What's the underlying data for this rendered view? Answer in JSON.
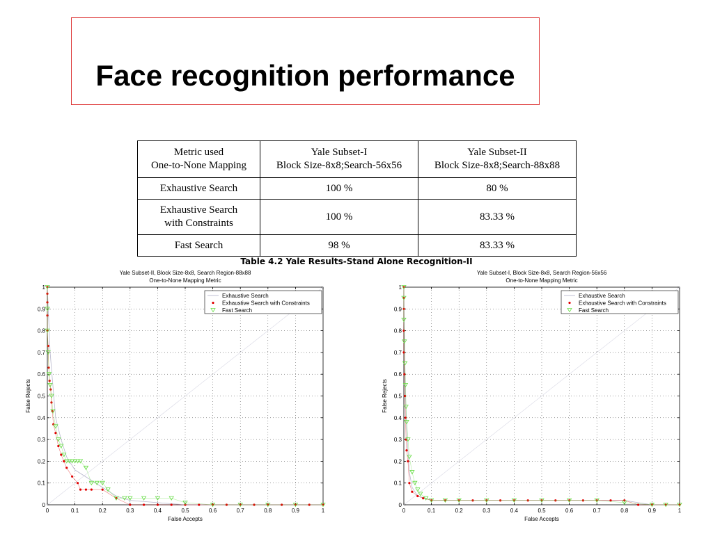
{
  "slide": {
    "title": "Face recognition performance"
  },
  "table": {
    "rows": [
      [
        "Metric used\nOne-to-None Mapping",
        "Yale Subset-I\nBlock Size-8x8;Search-56x56",
        "Yale Subset-II\nBlock Size-8x8;Search-88x88"
      ],
      [
        "Exhaustive Search",
        "100 %",
        "80 %"
      ],
      [
        "Exhaustive Search\nwith Constraints",
        "100 %",
        "83.33 %"
      ],
      [
        "Fast Search",
        "98 %",
        "83.33 %"
      ]
    ],
    "caption": "Table 4.2 Yale Results-Stand Alone Recognition-II"
  },
  "chart_data": [
    {
      "type": "line",
      "title": "Yale Subset-II, Block Size-8x8, Search Region-88x88",
      "subtitle": "One-to-None Mapping Metric",
      "xlabel": "False Accepts",
      "ylabel": "False Rejects",
      "xlim": [
        0,
        1
      ],
      "ylim": [
        0,
        1
      ],
      "xticks": [
        "0",
        "0.1",
        "0.2",
        "0.3",
        "0.4",
        "0.5",
        "0.6",
        "0.7",
        "0.8",
        "0.9",
        "1"
      ],
      "yticks": [
        "0",
        "0.1",
        "0.2",
        "0.3",
        "0.4",
        "0.5",
        "0.6",
        "0.7",
        "0.8",
        "0.9",
        "1"
      ],
      "grid": true,
      "legend_position": "top-right",
      "series": [
        {
          "name": "Exhaustive Search",
          "marker": "none",
          "color": "#b0b0c8",
          "x": [
            0,
            0.005,
            0.01,
            0.02,
            0.03,
            0.05,
            0.07,
            0.1,
            0.15,
            0.2,
            0.25,
            0.3,
            0.4,
            0.5,
            0.6,
            0.7,
            0.8,
            0.9,
            1.0
          ],
          "y": [
            1.0,
            0.85,
            0.7,
            0.55,
            0.4,
            0.3,
            0.22,
            0.16,
            0.12,
            0.08,
            0.04,
            0.02,
            0.01,
            0,
            0,
            0,
            0,
            0,
            0
          ]
        },
        {
          "name": "Exhaustive Search with Constraints",
          "marker": "dot",
          "color": "#e00000",
          "x": [
            0,
            0,
            0,
            0,
            0,
            0.003,
            0.005,
            0.008,
            0.012,
            0.015,
            0.018,
            0.022,
            0.03,
            0.04,
            0.05,
            0.06,
            0.07,
            0.09,
            0.11,
            0.12,
            0.14,
            0.16,
            0.2,
            0.25,
            0.3,
            0.35,
            0.4,
            0.45,
            0.5,
            0.55,
            0.6,
            0.65,
            0.7,
            0.75,
            0.8,
            0.85,
            0.9,
            0.95,
            1.0
          ],
          "y": [
            1.0,
            0.97,
            0.93,
            0.87,
            0.8,
            0.73,
            0.63,
            0.57,
            0.53,
            0.47,
            0.43,
            0.37,
            0.33,
            0.27,
            0.23,
            0.2,
            0.17,
            0.13,
            0.1,
            0.07,
            0.07,
            0.07,
            0.07,
            0.03,
            0,
            0,
            0,
            0,
            0,
            0,
            0,
            0,
            0,
            0,
            0,
            0,
            0,
            0,
            0
          ]
        },
        {
          "name": "Fast Search",
          "marker": "triangle-down",
          "color": "#66dd44",
          "x": [
            0,
            0,
            0,
            0.003,
            0.006,
            0.01,
            0.015,
            0.02,
            0.03,
            0.04,
            0.05,
            0.06,
            0.07,
            0.08,
            0.09,
            0.1,
            0.11,
            0.12,
            0.14,
            0.16,
            0.18,
            0.2,
            0.22,
            0.25,
            0.28,
            0.3,
            0.35,
            0.4,
            0.45,
            0.5,
            0.6,
            0.7,
            0.8,
            0.9,
            1.0
          ],
          "y": [
            1.0,
            0.9,
            0.8,
            0.7,
            0.6,
            0.55,
            0.5,
            0.43,
            0.36,
            0.3,
            0.27,
            0.23,
            0.2,
            0.2,
            0.2,
            0.2,
            0.2,
            0.2,
            0.17,
            0.1,
            0.1,
            0.1,
            0.07,
            0.03,
            0.03,
            0.03,
            0.03,
            0.03,
            0.03,
            0.01,
            0,
            0,
            0,
            0,
            0
          ]
        }
      ]
    },
    {
      "type": "line",
      "title": "Yale Subset-I, Block Size-8x8, Search Region-56x56",
      "subtitle": "One-to-None Mapping Metric",
      "xlabel": "False Accepts",
      "ylabel": "False Rejects",
      "xlim": [
        0,
        1
      ],
      "ylim": [
        0,
        1
      ],
      "xticks": [
        "0",
        "0.1",
        "0.2",
        "0.3",
        "0.4",
        "0.5",
        "0.6",
        "0.7",
        "0.8",
        "0.9",
        "1"
      ],
      "yticks": [
        "0",
        "0.1",
        "0.2",
        "0.3",
        "0.4",
        "0.5",
        "0.6",
        "0.7",
        "0.8",
        "0.9",
        "1"
      ],
      "grid": true,
      "legend_position": "top-right",
      "series": [
        {
          "name": "Exhaustive Search",
          "marker": "none",
          "color": "#b0b0c8",
          "x": [
            0,
            0.003,
            0.006,
            0.01,
            0.015,
            0.02,
            0.03,
            0.05,
            0.08,
            0.1,
            0.2,
            0.3,
            0.4,
            0.5,
            0.6,
            0.7,
            0.8,
            0.85,
            0.9,
            1.0
          ],
          "y": [
            1.0,
            0.7,
            0.5,
            0.35,
            0.25,
            0.15,
            0.08,
            0.04,
            0.03,
            0.02,
            0.02,
            0.02,
            0.02,
            0.02,
            0.02,
            0.02,
            0.02,
            0.01,
            0,
            0
          ]
        },
        {
          "name": "Exhaustive Search with Constraints",
          "marker": "dot",
          "color": "#e00000",
          "x": [
            0,
            0,
            0,
            0,
            0,
            0.002,
            0.004,
            0.006,
            0.008,
            0.01,
            0.015,
            0.02,
            0.03,
            0.05,
            0.07,
            0.1,
            0.15,
            0.2,
            0.25,
            0.3,
            0.35,
            0.4,
            0.45,
            0.5,
            0.55,
            0.6,
            0.65,
            0.7,
            0.75,
            0.8,
            0.85,
            0.9,
            0.95,
            1.0
          ],
          "y": [
            1.0,
            0.95,
            0.9,
            0.8,
            0.7,
            0.6,
            0.5,
            0.4,
            0.3,
            0.25,
            0.2,
            0.1,
            0.06,
            0.04,
            0.03,
            0.02,
            0.02,
            0.02,
            0.02,
            0.02,
            0.02,
            0.02,
            0.02,
            0.02,
            0.02,
            0.02,
            0.02,
            0.02,
            0.02,
            0.02,
            0,
            0,
            0,
            0
          ]
        },
        {
          "name": "Fast Search",
          "marker": "triangle-down",
          "color": "#66dd44",
          "x": [
            0,
            0,
            0,
            0.002,
            0.004,
            0.006,
            0.008,
            0.01,
            0.015,
            0.02,
            0.03,
            0.04,
            0.05,
            0.06,
            0.08,
            0.1,
            0.15,
            0.2,
            0.3,
            0.4,
            0.5,
            0.6,
            0.7,
            0.8,
            0.9,
            0.95,
            1.0
          ],
          "y": [
            1.0,
            0.95,
            0.85,
            0.75,
            0.65,
            0.55,
            0.45,
            0.38,
            0.3,
            0.22,
            0.15,
            0.1,
            0.07,
            0.05,
            0.03,
            0.02,
            0.02,
            0.02,
            0.02,
            0.02,
            0.02,
            0.02,
            0.02,
            0.01,
            0,
            0,
            0
          ]
        }
      ]
    }
  ]
}
